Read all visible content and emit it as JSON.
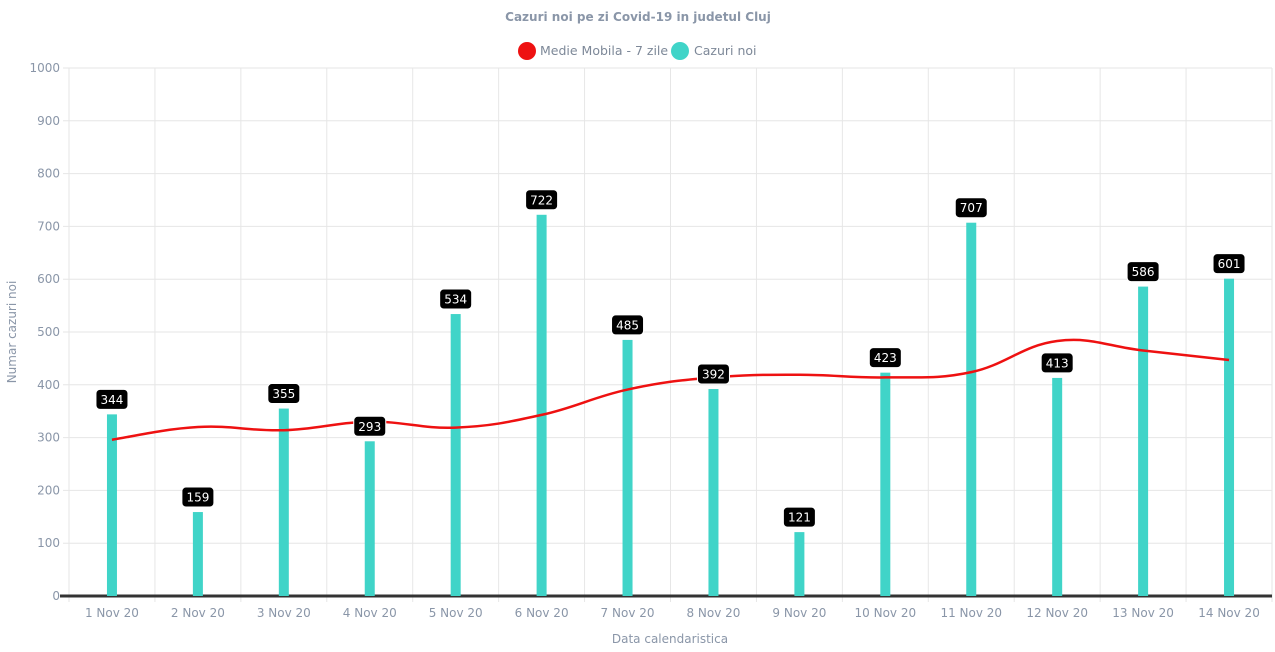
{
  "chart_data": {
    "type": "bar",
    "title": "Cazuri noi pe zi Covid-19 in judetul Cluj",
    "xlabel": "Data calendaristica",
    "ylabel": "Numar cazuri noi",
    "ylim": [
      0,
      1000
    ],
    "yticks": [
      "0",
      "100",
      "200",
      "300",
      "400",
      "500",
      "600",
      "700",
      "800",
      "900",
      "1000"
    ],
    "grid": true,
    "legend_position": "top-center",
    "categories": [
      "1 Nov 20",
      "2 Nov 20",
      "3 Nov 20",
      "4 Nov 20",
      "5 Nov 20",
      "6 Nov 20",
      "7 Nov 20",
      "8 Nov 20",
      "9 Nov 20",
      "10 Nov 20",
      "11 Nov 20",
      "12 Nov 20",
      "13 Nov 20",
      "14 Nov 20"
    ],
    "series": [
      {
        "name": "Medie Mobila - 7 zile",
        "type": "line",
        "color": "#ee1111",
        "values": [
          296,
          320,
          314,
          330,
          319,
          343,
          391,
          414,
          419,
          414,
          424,
          483,
          465,
          447
        ]
      },
      {
        "name": "Cazuri noi",
        "type": "bar",
        "color": "#40d4c8",
        "values": [
          344,
          159,
          355,
          293,
          534,
          722,
          485,
          392,
          121,
          423,
          707,
          413,
          586,
          601
        ],
        "data_labels": [
          "344",
          "159",
          "355",
          "293",
          "534",
          "722",
          "485",
          "392",
          "121",
          "423",
          "707",
          "413",
          "586",
          "601"
        ]
      }
    ]
  }
}
